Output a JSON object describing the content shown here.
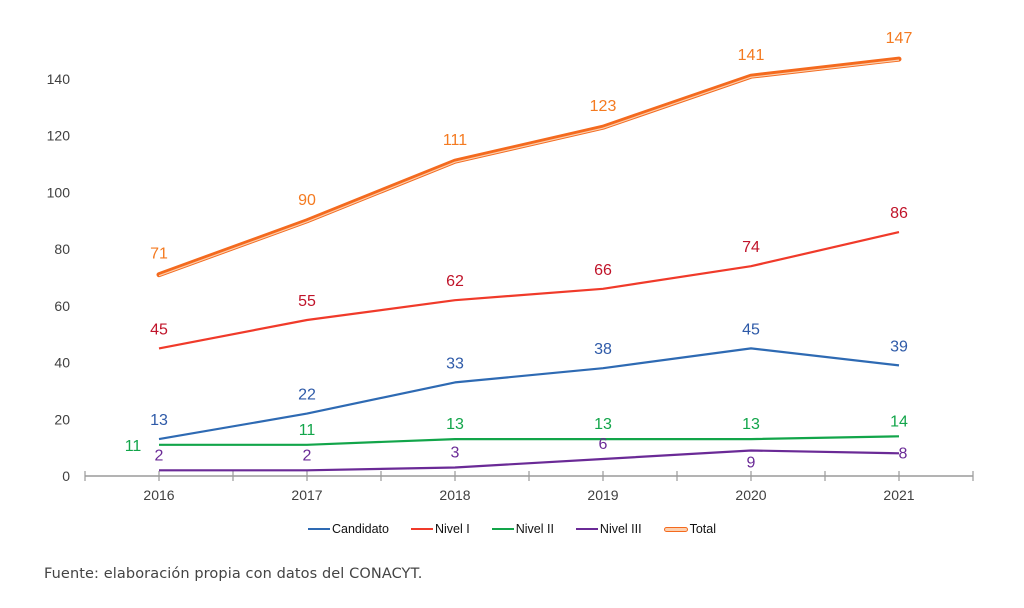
{
  "chart_data": {
    "type": "line",
    "title": "",
    "xlabel": "",
    "ylabel": "",
    "x": [
      "2016",
      "2017",
      "2018",
      "2019",
      "2020",
      "2021"
    ],
    "ylim": [
      0,
      140
    ],
    "yticks": [
      0,
      20,
      40,
      60,
      80,
      100,
      120,
      140
    ],
    "grid": false,
    "legend_position": "bottom",
    "series": [
      {
        "name": "Candidato",
        "color": "#2e6ab3",
        "label_color": "#2e5aa8",
        "values": [
          13,
          22,
          33,
          38,
          45,
          39
        ],
        "style": "single"
      },
      {
        "name": "Nivel I",
        "color": "#f03a2a",
        "label_color": "#c0142a",
        "values": [
          45,
          55,
          62,
          66,
          74,
          86
        ],
        "style": "single"
      },
      {
        "name": "Nivel II",
        "color": "#12a54a",
        "label_color": "#12a54a",
        "values": [
          11,
          11,
          13,
          13,
          13,
          14
        ],
        "style": "single"
      },
      {
        "name": "Nivel III",
        "color": "#6a2a96",
        "label_color": "#6a2a96",
        "values": [
          2,
          2,
          3,
          6,
          9,
          8
        ],
        "style": "single"
      },
      {
        "name": "Total",
        "color": "#f46a1e",
        "label_color": "#f47a20",
        "values": [
          71,
          90,
          111,
          123,
          141,
          147
        ],
        "style": "double"
      }
    ]
  },
  "source_note": "Fuente: elaboración propia con datos del CONACYT."
}
